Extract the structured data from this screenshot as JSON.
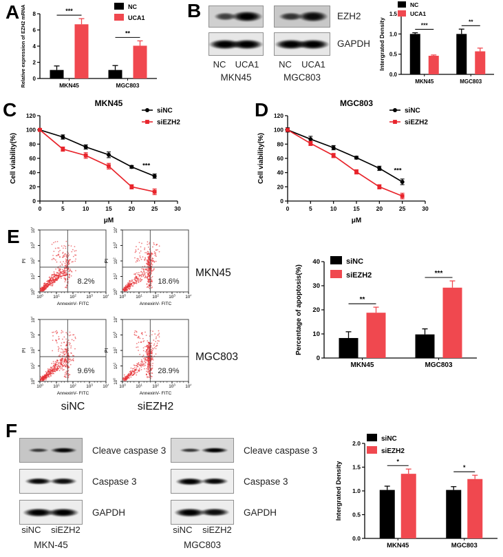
{
  "panels": {
    "A": "A",
    "B": "B",
    "C": "C",
    "D": "D",
    "E": "E",
    "F": "F"
  },
  "colors": {
    "black": "#000000",
    "bar_red": "#F0484F",
    "line_red": "#E8242B",
    "scatter_red": "#E63238"
  },
  "western_blots": {
    "b": {
      "row_labels": [
        "EZH2",
        "GAPDH"
      ],
      "groups": [
        {
          "cell": "MKN45",
          "lanes": [
            "NC",
            "UCA1"
          ],
          "rows": [
            {
              "bands": [
                0.45,
                1.0
              ]
            },
            {
              "bands": [
                1.0,
                1.0
              ]
            }
          ]
        },
        {
          "cell": "MGC803",
          "lanes": [
            "NC",
            "UCA1"
          ],
          "rows": [
            {
              "bands": [
                0.55,
                0.9
              ]
            },
            {
              "bands": [
                1.0,
                1.0
              ]
            }
          ]
        }
      ]
    },
    "f": {
      "row_labels": [
        "Cleave caspase 3",
        "Caspase 3",
        "GAPDH"
      ],
      "groups": [
        {
          "cell": "MKN-45",
          "lanes": [
            "siNC",
            "siEZH2"
          ],
          "rows": [
            {
              "bands": [
                0.5,
                0.95
              ]
            },
            {
              "bands": [
                0.95,
                0.9
              ]
            },
            {
              "bands": [
                1.0,
                1.0
              ]
            }
          ]
        },
        {
          "cell": "MGC803",
          "lanes": [
            "siNC",
            "siEZH2"
          ],
          "rows": [
            {
              "bands": [
                0.55,
                1.0
              ]
            },
            {
              "bands": [
                1.0,
                0.95
              ]
            },
            {
              "bands": [
                1.0,
                0.9
              ]
            }
          ]
        }
      ]
    }
  },
  "chart_data": [
    {
      "id": "A",
      "type": "bar",
      "title": "",
      "ylabel": "Relative expression of EZH2 mRNA",
      "ylim": [
        0,
        8
      ],
      "yticks": [
        0,
        2,
        4,
        6,
        8
      ],
      "ytick_labels": [
        "0",
        "2",
        "4",
        "6",
        "8"
      ],
      "categories": [
        "MKN45",
        "MGC803"
      ],
      "series": [
        {
          "name": "NC",
          "color": "#000000",
          "values": [
            1.05,
            1.05
          ],
          "errors": [
            0.5,
            0.55
          ]
        },
        {
          "name": "UCA1",
          "color": "#F0484F",
          "values": [
            6.7,
            4.05
          ],
          "errors": [
            0.7,
            0.6
          ]
        }
      ],
      "sig": [
        {
          "category": 0,
          "label": "***"
        },
        {
          "category": 1,
          "label": "**"
        }
      ],
      "legend_position": "top-right",
      "grid": false
    },
    {
      "id": "B",
      "type": "bar",
      "title": "",
      "ylabel": "Intergrated Density",
      "ylim": [
        0,
        1.5
      ],
      "yticks": [
        0,
        0.5,
        1,
        1.5
      ],
      "ytick_labels": [
        "0.0",
        "0.5",
        "1.0",
        "1.5"
      ],
      "categories": [
        "MKN45",
        "MGC803"
      ],
      "series": [
        {
          "name": "NC",
          "color": "#000000",
          "values": [
            1.0,
            1.0
          ],
          "errors": [
            0.03,
            0.12
          ]
        },
        {
          "name": "UCA1",
          "color": "#F0484F",
          "values": [
            0.46,
            0.57
          ],
          "errors": [
            0.02,
            0.08
          ]
        }
      ],
      "sig": [
        {
          "category": 0,
          "label": "***"
        },
        {
          "category": 1,
          "label": "**"
        }
      ],
      "legend_position": "top-left",
      "grid": false
    },
    {
      "id": "C",
      "type": "line",
      "title": "MKN45",
      "xlabel": "μM",
      "ylabel": "Cell viability(%)",
      "xlim": [
        0,
        30
      ],
      "xticks": [
        0,
        5,
        10,
        15,
        20,
        25,
        30
      ],
      "ylim": [
        0,
        120
      ],
      "yticks": [
        0,
        20,
        40,
        60,
        80,
        100,
        120
      ],
      "x": [
        0,
        5,
        10,
        15,
        20,
        25
      ],
      "series": [
        {
          "name": "siNC",
          "color": "#000000",
          "marker": "circle",
          "values": [
            100,
            90,
            76,
            65,
            48,
            35
          ],
          "errors": [
            2,
            3,
            3,
            4,
            2,
            3
          ]
        },
        {
          "name": "siEZH2",
          "color": "#E8242B",
          "marker": "square",
          "values": [
            100,
            73,
            64,
            49,
            20,
            13
          ],
          "errors": [
            2,
            3,
            4,
            4,
            3,
            4
          ]
        }
      ],
      "sig": {
        "x": 23.2,
        "y": 47,
        "label": "***"
      },
      "legend_position": "top-right",
      "grid": false
    },
    {
      "id": "D",
      "type": "line",
      "title": "MGC803",
      "xlabel": "μM",
      "ylabel": "Cell viability(%)",
      "xlim": [
        0,
        30
      ],
      "xticks": [
        0,
        5,
        10,
        15,
        20,
        25,
        30
      ],
      "ylim": [
        0,
        120
      ],
      "yticks": [
        0,
        20,
        40,
        60,
        80,
        100,
        120
      ],
      "x": [
        0,
        5,
        10,
        15,
        20,
        25
      ],
      "series": [
        {
          "name": "siNC",
          "color": "#000000",
          "marker": "circle",
          "values": [
            100,
            87,
            75,
            61,
            46,
            27
          ],
          "errors": [
            3,
            4,
            3,
            2,
            3,
            4
          ]
        },
        {
          "name": "siEZH2",
          "color": "#E8242B",
          "marker": "square",
          "values": [
            100,
            81,
            64,
            41,
            20,
            7
          ],
          "errors": [
            2,
            3,
            3,
            3,
            3,
            4
          ]
        }
      ],
      "sig": {
        "x": 24,
        "y": 40,
        "label": "***"
      },
      "legend_position": "top-right",
      "grid": false
    },
    {
      "id": "E_flow",
      "type": "scatter",
      "xlabel": "AnnexinV- FITC",
      "ylabel": "PI",
      "axis_decades": [
        0,
        1,
        2,
        3,
        4
      ],
      "row_labels": [
        "MKN45",
        "MGC803"
      ],
      "col_labels": [
        "siNC",
        "siEZH2"
      ],
      "plots": [
        {
          "row": "MKN45",
          "col": "siNC",
          "apoptosis_pct_label": "8.2%",
          "apoptosis_pct": 8.2
        },
        {
          "row": "MKN45",
          "col": "siEZH2",
          "apoptosis_pct_label": "18.6%",
          "apoptosis_pct": 18.6
        },
        {
          "row": "MGC803",
          "col": "siNC",
          "apoptosis_pct_label": "9.6%",
          "apoptosis_pct": 9.6
        },
        {
          "row": "MGC803",
          "col": "siEZH2",
          "apoptosis_pct_label": "28.9%",
          "apoptosis_pct": 28.9
        }
      ]
    },
    {
      "id": "E",
      "type": "bar",
      "title": "",
      "ylabel": "Percentage of apoptosis(%)",
      "ylim": [
        0,
        40
      ],
      "yticks": [
        0,
        10,
        20,
        30,
        40
      ],
      "ytick_labels": [
        "0",
        "10",
        "20",
        "30",
        "40"
      ],
      "categories": [
        "MKN45",
        "MGC803"
      ],
      "series": [
        {
          "name": "siNC",
          "color": "#000000",
          "values": [
            8.3,
            9.8
          ],
          "errors": [
            2.6,
            2.3
          ]
        },
        {
          "name": "siEZH2",
          "color": "#F0484F",
          "values": [
            18.8,
            29.2
          ],
          "errors": [
            2.3,
            2.8
          ]
        }
      ],
      "sig": [
        {
          "category": 0,
          "label": "**"
        },
        {
          "category": 1,
          "label": "***"
        }
      ],
      "legend_position": "top-left",
      "grid": false
    },
    {
      "id": "F",
      "type": "bar",
      "title": "",
      "ylabel": "Intergrated Density",
      "ylim": [
        0,
        2
      ],
      "yticks": [
        0,
        0.5,
        1,
        1.5,
        2
      ],
      "ytick_labels": [
        "0.0",
        "0.5",
        "1.0",
        "1.5",
        "2.0"
      ],
      "categories": [
        "MKN45",
        "MGC803"
      ],
      "series": [
        {
          "name": "siNC",
          "color": "#000000",
          "values": [
            1.02,
            1.02
          ],
          "errors": [
            0.08,
            0.07
          ]
        },
        {
          "name": "siEZH2",
          "color": "#F0484F",
          "values": [
            1.36,
            1.25
          ],
          "errors": [
            0.1,
            0.08
          ]
        }
      ],
      "sig": [
        {
          "category": 0,
          "label": "*"
        },
        {
          "category": 1,
          "label": "*"
        }
      ],
      "legend_position": "top-left",
      "grid": false
    }
  ]
}
